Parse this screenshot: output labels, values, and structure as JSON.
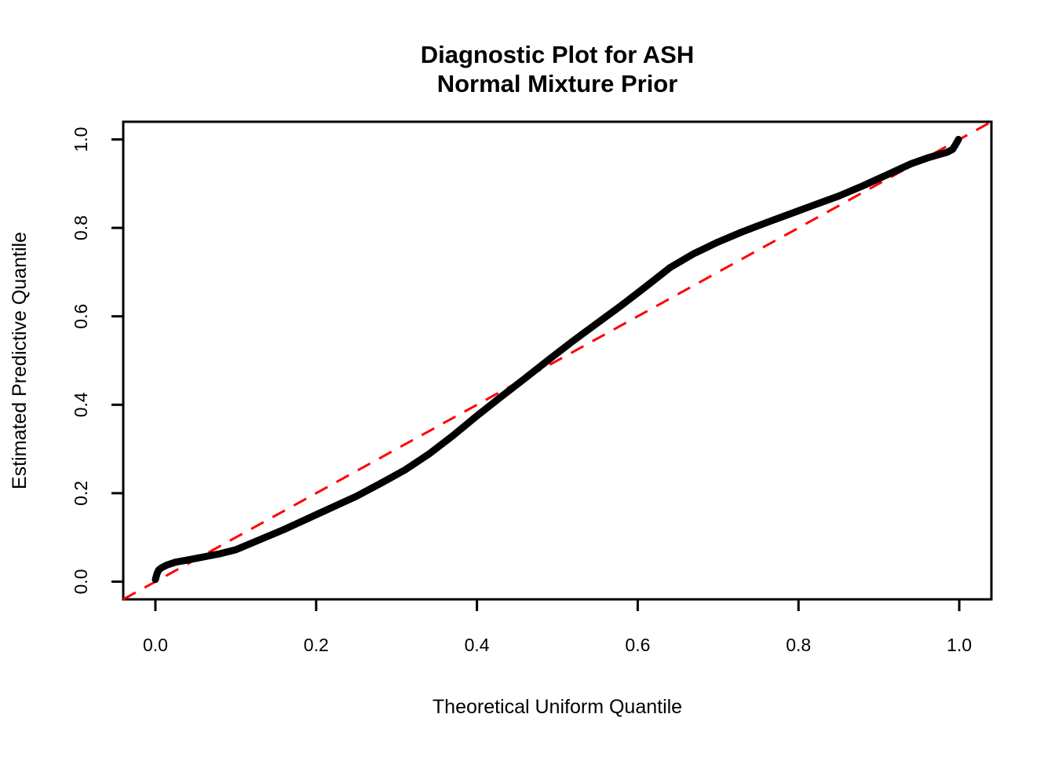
{
  "figure": {
    "title_line1": "Diagnostic Plot for ASH",
    "title_line2": "Normal Mixture Prior",
    "xlabel": "Theoretical Uniform Quantile",
    "ylabel": "Estimated Predictive Quantile"
  },
  "chart_data": {
    "type": "line",
    "title": "Diagnostic Plot for ASH\nNormal Mixture Prior",
    "xlabel": "Theoretical Uniform Quantile",
    "ylabel": "Estimated Predictive Quantile",
    "xlim": [
      -0.04,
      1.04
    ],
    "ylim": [
      -0.04,
      1.04
    ],
    "x_ticks": [
      0.0,
      0.2,
      0.4,
      0.6,
      0.8,
      1.0
    ],
    "y_ticks": [
      0.0,
      0.2,
      0.4,
      0.6,
      0.8,
      1.0
    ],
    "grid": false,
    "legend": "none",
    "colors": {
      "curve": "#000000",
      "reference": "#ff0000",
      "axis": "#000000",
      "background": "#ffffff"
    },
    "series": [
      {
        "name": "estimated-predictive-quantile-curve",
        "color": "#000000",
        "style": "solid",
        "line_width": 9,
        "points": [
          [
            0.0,
            0.005
          ],
          [
            0.002,
            0.018
          ],
          [
            0.004,
            0.026
          ],
          [
            0.008,
            0.032
          ],
          [
            0.015,
            0.038
          ],
          [
            0.025,
            0.044
          ],
          [
            0.04,
            0.049
          ],
          [
            0.06,
            0.056
          ],
          [
            0.08,
            0.063
          ],
          [
            0.1,
            0.072
          ],
          [
            0.13,
            0.095
          ],
          [
            0.16,
            0.118
          ],
          [
            0.19,
            0.143
          ],
          [
            0.22,
            0.168
          ],
          [
            0.25,
            0.193
          ],
          [
            0.28,
            0.222
          ],
          [
            0.31,
            0.252
          ],
          [
            0.34,
            0.288
          ],
          [
            0.37,
            0.33
          ],
          [
            0.4,
            0.375
          ],
          [
            0.43,
            0.418
          ],
          [
            0.46,
            0.46
          ],
          [
            0.49,
            0.503
          ],
          [
            0.52,
            0.545
          ],
          [
            0.55,
            0.585
          ],
          [
            0.58,
            0.625
          ],
          [
            0.61,
            0.667
          ],
          [
            0.64,
            0.71
          ],
          [
            0.67,
            0.742
          ],
          [
            0.7,
            0.768
          ],
          [
            0.73,
            0.791
          ],
          [
            0.76,
            0.812
          ],
          [
            0.79,
            0.832
          ],
          [
            0.82,
            0.852
          ],
          [
            0.85,
            0.872
          ],
          [
            0.88,
            0.895
          ],
          [
            0.91,
            0.92
          ],
          [
            0.94,
            0.945
          ],
          [
            0.96,
            0.958
          ],
          [
            0.975,
            0.966
          ],
          [
            0.985,
            0.971
          ],
          [
            0.992,
            0.978
          ],
          [
            0.996,
            0.99
          ],
          [
            0.999,
            1.0
          ]
        ]
      },
      {
        "name": "y-equals-x-reference",
        "color": "#ff0000",
        "style": "dashed",
        "line_width": 3,
        "points": [
          [
            -0.04,
            -0.04
          ],
          [
            1.04,
            1.04
          ]
        ]
      }
    ]
  }
}
